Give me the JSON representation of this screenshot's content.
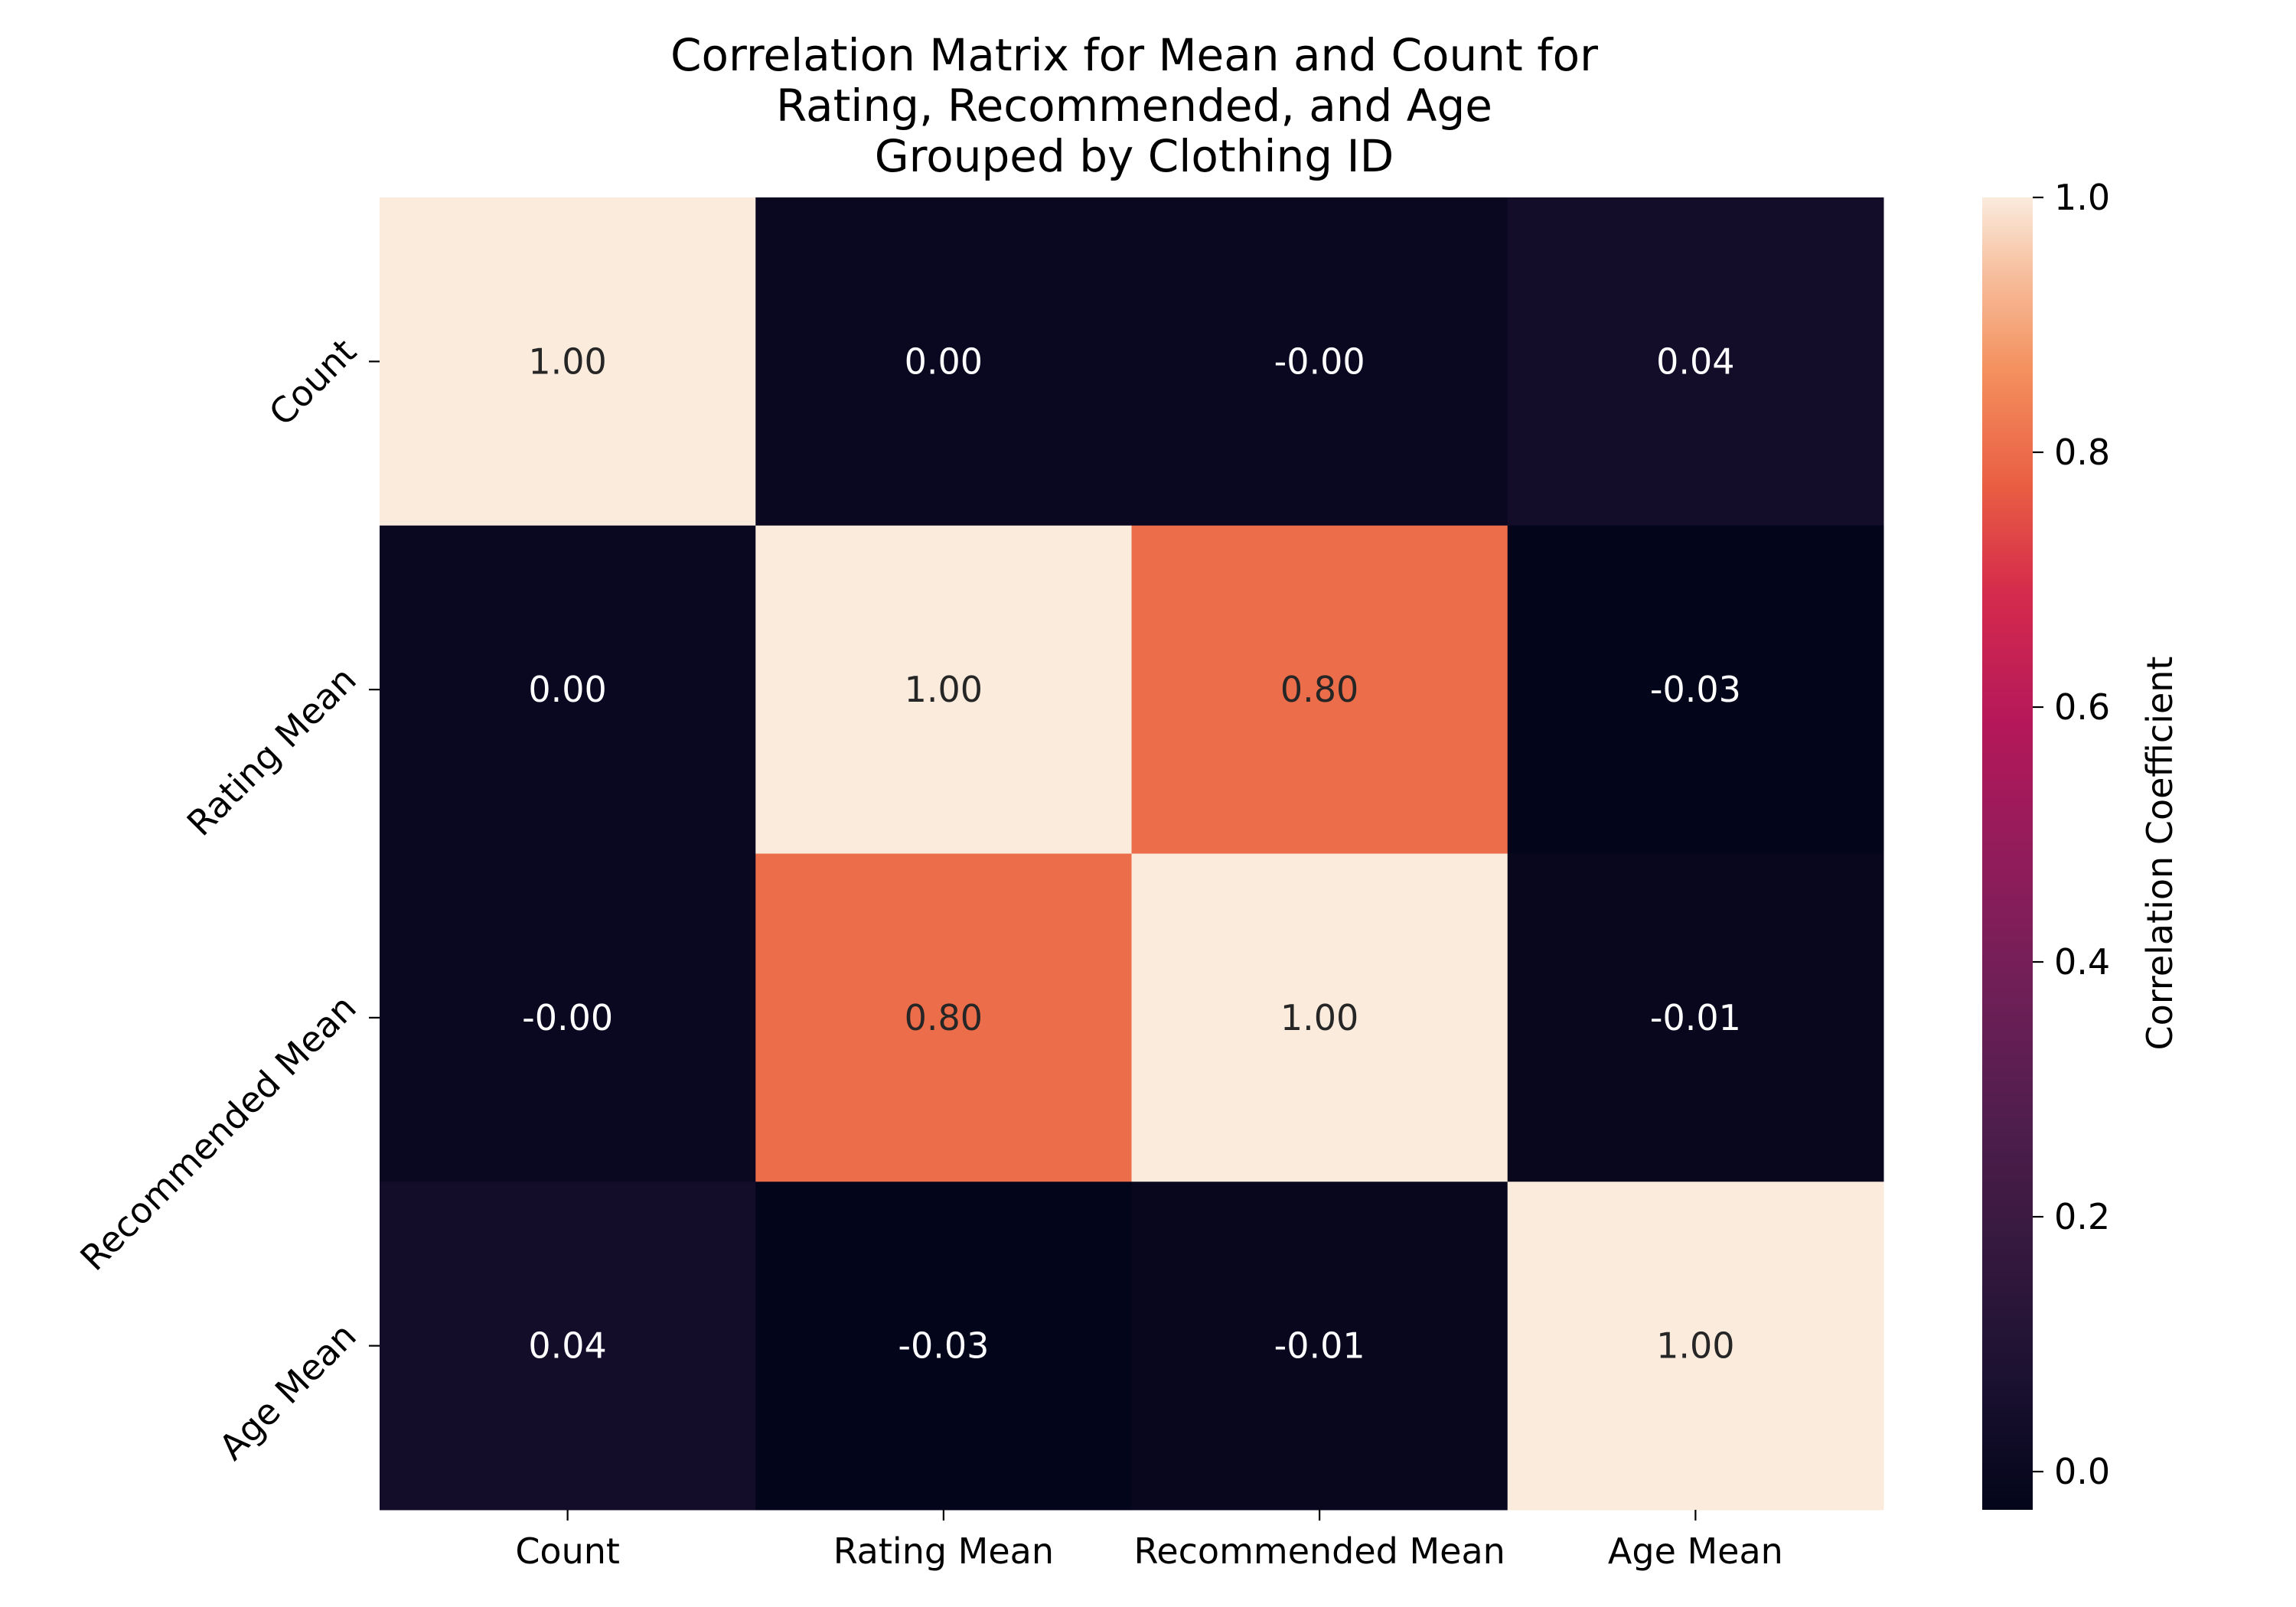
{
  "chart_data": {
    "type": "heatmap",
    "title_lines": [
      "Correlation Matrix for Mean and Count for",
      "Rating, Recommended, and Age",
      "Grouped by Clothing ID"
    ],
    "x_categories": [
      "Count",
      "Rating Mean",
      "Recommended Mean",
      "Age Mean"
    ],
    "y_categories": [
      "Count",
      "Rating Mean",
      "Recommended Mean",
      "Age Mean"
    ],
    "values": [
      [
        1.0,
        0.0,
        -0.0,
        0.04
      ],
      [
        0.0,
        1.0,
        0.8,
        -0.03
      ],
      [
        -0.0,
        0.8,
        1.0,
        -0.01
      ],
      [
        0.04,
        -0.03,
        -0.01,
        1.0
      ]
    ],
    "cell_labels": [
      [
        "1.00",
        "0.00",
        "-0.00",
        "0.04"
      ],
      [
        "0.00",
        "1.00",
        "0.80",
        "-0.03"
      ],
      [
        "-0.00",
        "0.80",
        "1.00",
        "-0.01"
      ],
      [
        "0.04",
        "-0.03",
        "-0.01",
        "1.00"
      ]
    ],
    "colorbar": {
      "label": "Correlation Coefficient",
      "range": [
        -0.03,
        1.0
      ],
      "ticks": [
        "0.0",
        "0.2",
        "0.4",
        "0.6",
        "0.8",
        "1.0"
      ],
      "tick_values": [
        0.0,
        0.2,
        0.4,
        0.6,
        0.8,
        1.0
      ],
      "colormap": "rocket"
    }
  }
}
